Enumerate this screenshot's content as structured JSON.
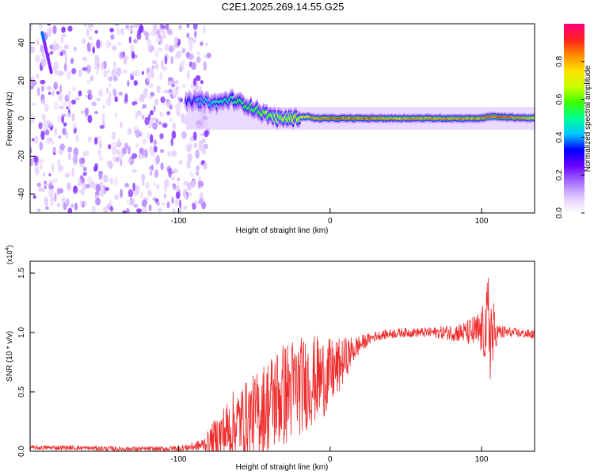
{
  "figure_title": "C2E1.2025.269.14.55.G25",
  "chart_data": [
    {
      "type": "heatmap",
      "title": "C2E1.2025.269.14.55.G25",
      "xlabel": "Height of straight line (km)",
      "ylabel": "Frequency (Hz)",
      "xlim": [
        -198,
        135
      ],
      "ylim": [
        -50,
        50
      ],
      "x_ticks": [
        -100,
        0,
        100
      ],
      "x_tick_labels": [
        "-100",
        "0",
        "100"
      ],
      "y_ticks": [
        -40,
        -20,
        0,
        20,
        40
      ],
      "y_tick_labels": [
        "-40",
        "-20",
        "0",
        "20",
        "40"
      ],
      "colorbar": {
        "label": "Normalized spectral amplitude",
        "range": [
          0,
          1
        ],
        "ticks": [
          0.0,
          0.2,
          0.4,
          0.6,
          0.8
        ],
        "tick_labels": [
          "0.0",
          "0.2",
          "0.4",
          "0.6",
          "0.8"
        ],
        "colors": [
          "#ffffff",
          "#e0c8ff",
          "#a46bff",
          "#6a00ff",
          "#0000ff",
          "#00c8ff",
          "#00ff96",
          "#3cff00",
          "#c8ff00",
          "#ffe100",
          "#ff8c00",
          "#ff1e1e",
          "#ff0080"
        ]
      },
      "scatter_region": {
        "x_range": [
          -198,
          -80
        ],
        "y_range": [
          -50,
          50
        ],
        "dominant_amplitude": 0.1
      },
      "ridge": {
        "x": [
          -95,
          -85,
          -75,
          -65,
          -55,
          -45,
          -35,
          -25,
          -15,
          -10,
          0,
          20,
          40,
          60,
          80,
          100,
          105,
          135
        ],
        "y": [
          9,
          9,
          8,
          10,
          7,
          3,
          0,
          0,
          1,
          0,
          0,
          0,
          0,
          0,
          0,
          0,
          1,
          0
        ],
        "peak_amplitude": [
          0.35,
          0.45,
          0.5,
          0.55,
          0.6,
          0.65,
          0.7,
          0.8,
          0.85,
          0.9,
          0.95,
          0.95,
          0.9,
          0.9,
          0.9,
          0.9,
          1.0,
          0.85
        ]
      }
    },
    {
      "type": "line",
      "xlabel": "Height of straight line (km)",
      "ylabel": "SNR (10 * v/v)",
      "y_scale_label": "(x10",
      "y_scale_exp": "4",
      "y_scale_close": ")",
      "xlim": [
        -198,
        135
      ],
      "ylim": [
        0,
        1.6
      ],
      "x_ticks": [
        -100,
        0,
        100
      ],
      "x_tick_labels": [
        "-100",
        "0",
        "100"
      ],
      "y_ticks": [
        0.0,
        0.5,
        1.0,
        1.5
      ],
      "y_tick_labels": [
        "0.0",
        "0.5",
        "1.0",
        "1.5"
      ],
      "series": [
        {
          "name": "SNR",
          "color": "#ee2c2c",
          "x": [
            -198,
            -170,
            -140,
            -110,
            -95,
            -85,
            -80,
            -75,
            -70,
            -65,
            -60,
            -55,
            -50,
            -45,
            -40,
            -35,
            -30,
            -25,
            -20,
            -15,
            -10,
            -5,
            0,
            5,
            10,
            15,
            20,
            25,
            30,
            35,
            40,
            50,
            60,
            70,
            80,
            90,
            95,
            100,
            103,
            105,
            107,
            110,
            120,
            135
          ],
          "y": [
            0.03,
            0.03,
            0.02,
            0.02,
            0.03,
            0.05,
            0.08,
            0.12,
            0.15,
            0.2,
            0.25,
            0.28,
            0.3,
            0.35,
            0.4,
            0.45,
            0.48,
            0.52,
            0.55,
            0.58,
            0.6,
            0.62,
            0.65,
            0.7,
            0.78,
            0.85,
            0.9,
            0.94,
            0.97,
            0.98,
            0.99,
            1.0,
            1.0,
            1.0,
            1.0,
            1.0,
            1.0,
            1.0,
            1.02,
            1.1,
            0.95,
            1.0,
            1.0,
            0.98
          ],
          "noise_amplitude": [
            0.02,
            0.02,
            0.02,
            0.02,
            0.03,
            0.05,
            0.1,
            0.18,
            0.25,
            0.3,
            0.3,
            0.32,
            0.35,
            0.38,
            0.42,
            0.45,
            0.45,
            0.45,
            0.42,
            0.4,
            0.38,
            0.35,
            0.3,
            0.25,
            0.18,
            0.12,
            0.08,
            0.05,
            0.04,
            0.04,
            0.04,
            0.04,
            0.04,
            0.05,
            0.07,
            0.1,
            0.15,
            0.2,
            0.3,
            0.55,
            0.4,
            0.08,
            0.04,
            0.04
          ]
        }
      ]
    }
  ]
}
